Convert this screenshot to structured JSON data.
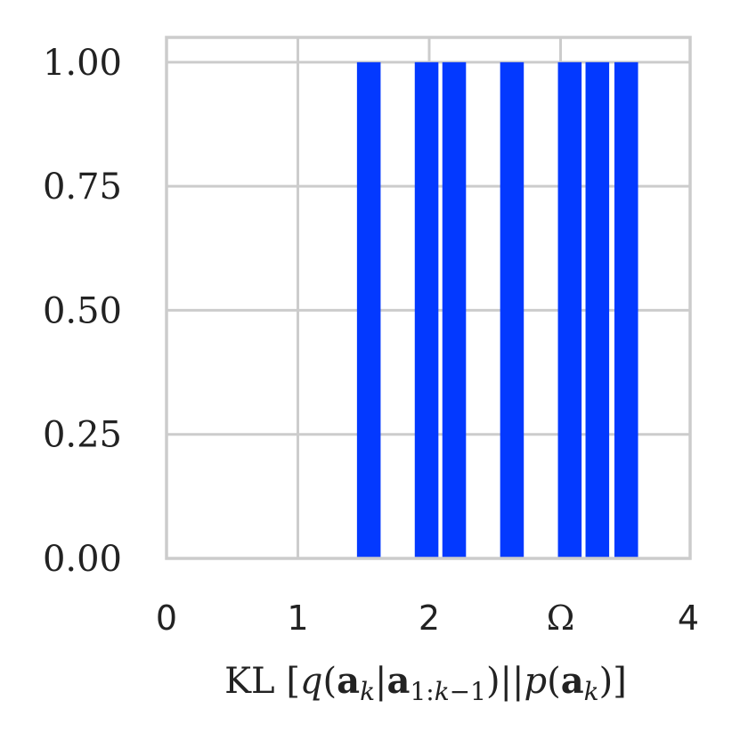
{
  "chart_data": {
    "type": "bar",
    "xlabel": "KL [q(a_k|a_{1:k−1})||p(a_k)]",
    "xlim": [
      0,
      4
    ],
    "ylim": [
      0,
      1.05
    ],
    "grid": true,
    "x_ticks": [
      {
        "value": 0,
        "label": "0"
      },
      {
        "value": 1,
        "label": "1"
      },
      {
        "value": 2,
        "label": "2"
      },
      {
        "value": 3,
        "label": "Ω"
      },
      {
        "value": 4,
        "label": "4"
      }
    ],
    "y_ticks": [
      {
        "value": 0.0,
        "label": "0.00"
      },
      {
        "value": 0.25,
        "label": "0.25"
      },
      {
        "value": 0.5,
        "label": "0.50"
      },
      {
        "value": 0.75,
        "label": "0.75"
      },
      {
        "value": 1.0,
        "label": "1.00"
      }
    ],
    "bar_color": "#0339ff",
    "bins": [
      {
        "x0": 1.45,
        "x1": 1.63,
        "value": 1.0
      },
      {
        "x0": 1.89,
        "x1": 2.07,
        "value": 1.0
      },
      {
        "x0": 2.1,
        "x1": 2.28,
        "value": 1.0
      },
      {
        "x0": 2.54,
        "x1": 2.72,
        "value": 1.0
      },
      {
        "x0": 2.98,
        "x1": 3.16,
        "value": 1.0
      },
      {
        "x0": 3.19,
        "x1": 3.37,
        "value": 1.0
      },
      {
        "x0": 3.41,
        "x1": 3.59,
        "value": 1.0
      }
    ]
  }
}
